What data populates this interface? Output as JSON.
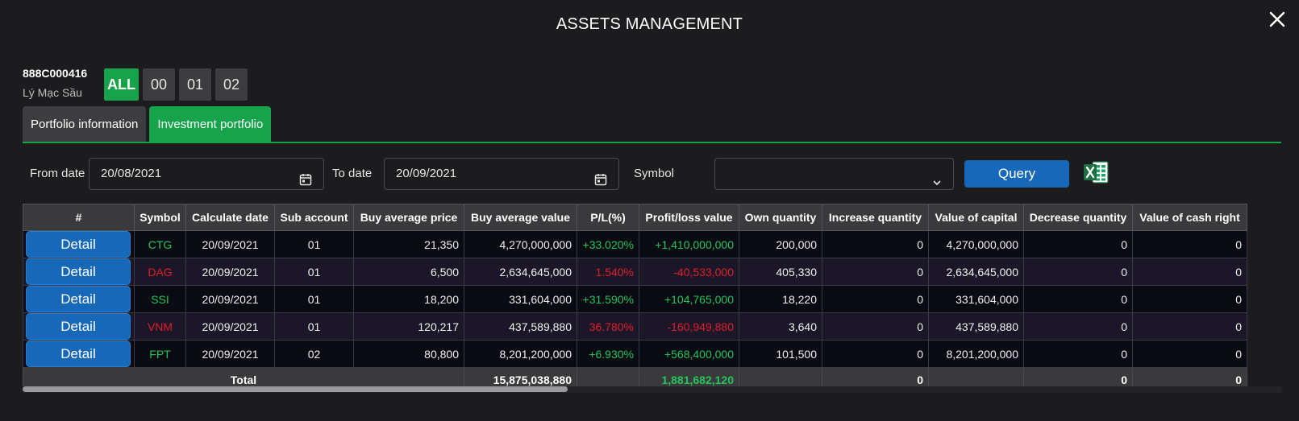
{
  "window": {
    "title": "ASSETS MANAGEMENT"
  },
  "account": {
    "id": "888C000416",
    "name": "Lý Mạc Sầu"
  },
  "sub_accounts": [
    "ALL",
    "00",
    "01",
    "02"
  ],
  "sub_accounts_selected": "ALL",
  "tabs": [
    {
      "label": "Portfolio information",
      "active": false
    },
    {
      "label": "Investment portfolio",
      "active": true
    }
  ],
  "filters": {
    "from_label": "From date",
    "from_value": "20/08/2021",
    "to_label": "To date",
    "to_value": "20/09/2021",
    "symbol_label": "Symbol",
    "symbol_value": "",
    "query_label": "Query"
  },
  "icons": {
    "close": "close-icon",
    "calendar": "calendar-icon",
    "dropdown": "chevron-down-icon",
    "export": "excel-icon"
  },
  "colors": {
    "accent": "#16a34a",
    "button": "#1768b8",
    "positive": "#22c55e",
    "negative": "#e11d2a"
  },
  "table": {
    "columns": [
      "#",
      "Symbol",
      "Calculate date",
      "Sub account",
      "Buy average price",
      "Buy average value",
      "P/L(%)",
      "Profit/loss value",
      "Own quantity",
      "Increase quantity",
      "Value of capital",
      "Decrease quantity",
      "Value of cash right"
    ],
    "detail_label": "Detail",
    "rows": [
      {
        "symbol": "CTG",
        "trend": "up",
        "date": "20/09/2021",
        "sub": "01",
        "avg_price": "21,350",
        "avg_value": "4,270,000,000",
        "pl_pct": "+33.020%",
        "pl_value": "+1,410,000,000",
        "own_qty": "200,000",
        "inc_qty": "0",
        "capital": "4,270,000,000",
        "dec_qty": "0",
        "cash_right": "0"
      },
      {
        "symbol": "DAG",
        "trend": "down",
        "date": "20/09/2021",
        "sub": "01",
        "avg_price": "6,500",
        "avg_value": "2,634,645,000",
        "pl_pct": "1.540%",
        "pl_value": "-40,533,000",
        "own_qty": "405,330",
        "inc_qty": "0",
        "capital": "2,634,645,000",
        "dec_qty": "0",
        "cash_right": "0"
      },
      {
        "symbol": "SSI",
        "trend": "up",
        "date": "20/09/2021",
        "sub": "01",
        "avg_price": "18,200",
        "avg_value": "331,604,000",
        "pl_pct": "+31.590%",
        "pl_value": "+104,765,000",
        "own_qty": "18,220",
        "inc_qty": "0",
        "capital": "331,604,000",
        "dec_qty": "0",
        "cash_right": "0"
      },
      {
        "symbol": "VNM",
        "trend": "down",
        "date": "20/09/2021",
        "sub": "01",
        "avg_price": "120,217",
        "avg_value": "437,589,880",
        "pl_pct": "36.780%",
        "pl_value": "-160,949,880",
        "own_qty": "3,640",
        "inc_qty": "0",
        "capital": "437,589,880",
        "dec_qty": "0",
        "cash_right": "0"
      },
      {
        "symbol": "FPT",
        "trend": "up",
        "date": "20/09/2021",
        "sub": "02",
        "avg_price": "80,800",
        "avg_value": "8,201,200,000",
        "pl_pct": "+6.930%",
        "pl_value": "+568,400,000",
        "own_qty": "101,500",
        "inc_qty": "0",
        "capital": "8,201,200,000",
        "dec_qty": "0",
        "cash_right": "0"
      }
    ],
    "total": {
      "label": "Total",
      "avg_value": "15,875,038,880",
      "pl_value": "1,881,682,120",
      "inc_qty": "0",
      "dec_qty": "0",
      "cash_right": "0"
    }
  }
}
